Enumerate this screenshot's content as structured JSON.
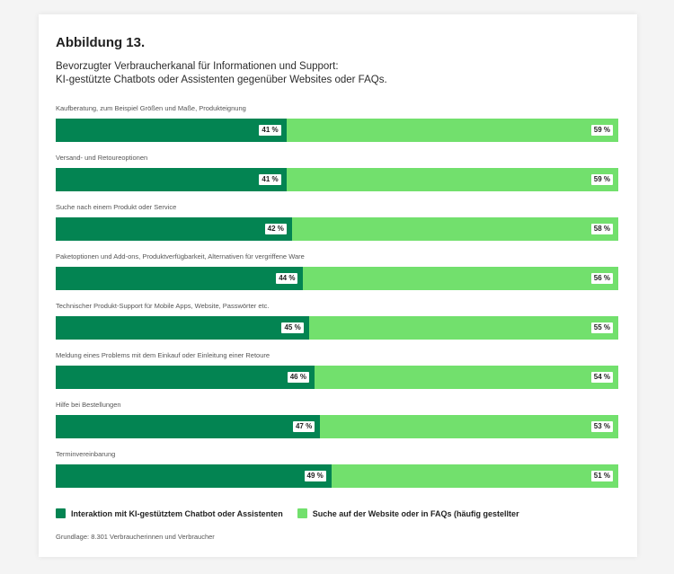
{
  "figure_label": "Abbildung 13.",
  "subtitle_line1": "Bevorzugter Verbraucherkanal für Informationen und Support:",
  "subtitle_line2": "KI-gestützte Chatbots oder Assistenten gegenüber Websites oder FAQs.",
  "basis": "Grundlage: 8.301 Verbraucherinnen und Verbraucher",
  "colors": {
    "series_a": "#038452",
    "series_b": "#72e06d"
  },
  "chart_data": {
    "type": "bar",
    "orientation": "horizontal-stacked-100",
    "title": "Bevorzugter Verbraucherkanal für Informationen und Support: KI-gestützte Chatbots oder Assistenten gegenüber Websites oder FAQs.",
    "categories": [
      "Kaufberatung, zum Beispiel Größen und Maße, Produkteignung",
      "Versand- und Retoureoptionen",
      "Suche nach einem Produkt oder Service",
      "Paketoptionen und Add-ons, Produktverfügbarkeit, Alternativen für vergriffene Ware",
      "Technischer Produkt-Support für Mobile Apps, Website, Passwörter etc.",
      "Meldung eines Problems mit dem Einkauf oder Einleitung einer Retoure",
      "Hilfe bei Bestellungen",
      "Terminvereinbarung"
    ],
    "series": [
      {
        "name": "Interaktion mit KI-gestütztem Chatbot oder Assistenten",
        "values": [
          41,
          41,
          42,
          44,
          45,
          46,
          47,
          49
        ],
        "labels": [
          "41 %",
          "41 %",
          "42 %",
          "44 %",
          "45 %",
          "46 %",
          "47 %",
          "49 %"
        ]
      },
      {
        "name": "Suche auf der Website oder in FAQs (häufig gestellter",
        "values": [
          59,
          59,
          58,
          56,
          55,
          54,
          53,
          51
        ],
        "labels": [
          "59 %",
          "59 %",
          "58 %",
          "56 %",
          "55 %",
          "54 %",
          "53 %",
          "51 %"
        ]
      }
    ],
    "unit": "%",
    "xlim": [
      0,
      100
    ],
    "legend_position": "bottom"
  }
}
